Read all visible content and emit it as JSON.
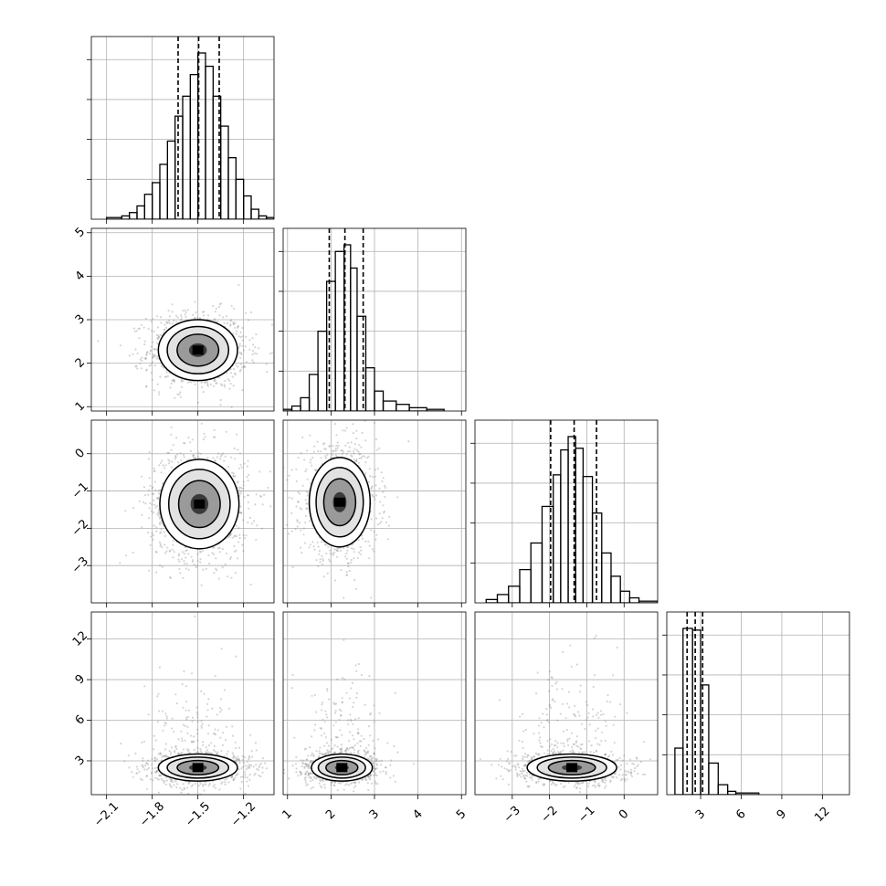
{
  "chart_data": {
    "type": "corner",
    "description": "Corner plot of 4 parameters: 1-D histograms on the diagonal with dashed 16/50/84 percentile lines; 2-D scatter + shaded density + contour panels below the diagonal.",
    "colors": {
      "line": "#000000",
      "grid": "#b0b0b0",
      "points": "#888888"
    },
    "grid": true,
    "parameters": [
      {
        "range": [
          -2.2,
          -1.0
        ],
        "ticks": [
          -2.1,
          -1.8,
          -1.5,
          -1.2
        ],
        "tick_labels": [
          "−2.1",
          "−1.8",
          "−1.5",
          "−1.2"
        ],
        "quantiles": [
          -1.63,
          -1.495,
          -1.36
        ],
        "mean": -1.495,
        "sd": 0.13,
        "hist": [
          {
            "lo": -2.2,
            "hi": -2.1,
            "count": 0
          },
          {
            "lo": -2.1,
            "hi": -2.0,
            "count": 1
          },
          {
            "lo": -2.0,
            "hi": -1.95,
            "count": 2
          },
          {
            "lo": -1.95,
            "hi": -1.9,
            "count": 4
          },
          {
            "lo": -1.9,
            "hi": -1.85,
            "count": 8
          },
          {
            "lo": -1.85,
            "hi": -1.8,
            "count": 15
          },
          {
            "lo": -1.8,
            "hi": -1.75,
            "count": 22
          },
          {
            "lo": -1.75,
            "hi": -1.7,
            "count": 33
          },
          {
            "lo": -1.7,
            "hi": -1.65,
            "count": 47
          },
          {
            "lo": -1.65,
            "hi": -1.6,
            "count": 62
          },
          {
            "lo": -1.6,
            "hi": -1.55,
            "count": 74
          },
          {
            "lo": -1.55,
            "hi": -1.5,
            "count": 87
          },
          {
            "lo": -1.5,
            "hi": -1.45,
            "count": 100
          },
          {
            "lo": -1.45,
            "hi": -1.4,
            "count": 92
          },
          {
            "lo": -1.4,
            "hi": -1.35,
            "count": 74
          },
          {
            "lo": -1.35,
            "hi": -1.3,
            "count": 56
          },
          {
            "lo": -1.3,
            "hi": -1.25,
            "count": 37
          },
          {
            "lo": -1.25,
            "hi": -1.2,
            "count": 24
          },
          {
            "lo": -1.2,
            "hi": -1.15,
            "count": 14
          },
          {
            "lo": -1.15,
            "hi": -1.1,
            "count": 6
          },
          {
            "lo": -1.1,
            "hi": -1.05,
            "count": 2
          },
          {
            "lo": -1.05,
            "hi": -1.0,
            "count": 1
          }
        ]
      },
      {
        "range": [
          0.9,
          5.1
        ],
        "ticks": [
          1,
          2,
          3,
          4,
          5
        ],
        "tick_labels": [
          "1",
          "2",
          "3",
          "4",
          "5"
        ],
        "quantiles": [
          1.96,
          2.32,
          2.74
        ],
        "mean": 2.32,
        "sd": 0.35,
        "hist": [
          {
            "lo": 0.9,
            "hi": 1.1,
            "count": 1
          },
          {
            "lo": 1.1,
            "hi": 1.3,
            "count": 3
          },
          {
            "lo": 1.3,
            "hi": 1.5,
            "count": 8
          },
          {
            "lo": 1.5,
            "hi": 1.7,
            "count": 22
          },
          {
            "lo": 1.7,
            "hi": 1.9,
            "count": 48
          },
          {
            "lo": 1.9,
            "hi": 2.1,
            "count": 78
          },
          {
            "lo": 2.1,
            "hi": 2.3,
            "count": 96
          },
          {
            "lo": 2.3,
            "hi": 2.45,
            "count": 100
          },
          {
            "lo": 2.45,
            "hi": 2.6,
            "count": 86
          },
          {
            "lo": 2.6,
            "hi": 2.8,
            "count": 57
          },
          {
            "lo": 2.8,
            "hi": 3.0,
            "count": 26
          },
          {
            "lo": 3.0,
            "hi": 3.2,
            "count": 12
          },
          {
            "lo": 3.2,
            "hi": 3.5,
            "count": 6
          },
          {
            "lo": 3.5,
            "hi": 3.8,
            "count": 4
          },
          {
            "lo": 3.8,
            "hi": 4.2,
            "count": 2
          },
          {
            "lo": 4.2,
            "hi": 4.6,
            "count": 1
          },
          {
            "lo": 4.6,
            "hi": 5.1,
            "count": 0
          }
        ]
      },
      {
        "range": [
          -4.0,
          0.9
        ],
        "ticks": [
          -3,
          -2,
          -1,
          0
        ],
        "tick_labels": [
          "−3",
          "−2",
          "−1",
          "0"
        ],
        "quantiles": [
          -1.97,
          -1.34,
          -0.74
        ],
        "mean": -1.34,
        "sd": 0.6,
        "hist": [
          {
            "lo": -4.0,
            "hi": -3.7,
            "count": 0
          },
          {
            "lo": -3.7,
            "hi": -3.4,
            "count": 2
          },
          {
            "lo": -3.4,
            "hi": -3.1,
            "count": 5
          },
          {
            "lo": -3.1,
            "hi": -2.8,
            "count": 10
          },
          {
            "lo": -2.8,
            "hi": -2.5,
            "count": 20
          },
          {
            "lo": -2.5,
            "hi": -2.2,
            "count": 36
          },
          {
            "lo": -2.2,
            "hi": -1.9,
            "count": 58
          },
          {
            "lo": -1.9,
            "hi": -1.7,
            "count": 77
          },
          {
            "lo": -1.7,
            "hi": -1.5,
            "count": 92
          },
          {
            "lo": -1.5,
            "hi": -1.3,
            "count": 100
          },
          {
            "lo": -1.3,
            "hi": -1.1,
            "count": 93
          },
          {
            "lo": -1.1,
            "hi": -0.85,
            "count": 76
          },
          {
            "lo": -0.85,
            "hi": -0.6,
            "count": 54
          },
          {
            "lo": -0.6,
            "hi": -0.35,
            "count": 30
          },
          {
            "lo": -0.35,
            "hi": -0.1,
            "count": 16
          },
          {
            "lo": -0.1,
            "hi": 0.15,
            "count": 7
          },
          {
            "lo": 0.15,
            "hi": 0.4,
            "count": 3
          },
          {
            "lo": 0.4,
            "hi": 0.9,
            "count": 1
          }
        ]
      },
      {
        "range": [
          0.5,
          14.0
        ],
        "ticks": [
          3,
          6,
          9,
          12
        ],
        "tick_labels": [
          "3",
          "6",
          "9",
          "12"
        ],
        "quantiles": [
          2.0,
          2.6,
          3.15
        ],
        "mean": 2.6,
        "sd": 0.5,
        "hist": [
          {
            "lo": 0.5,
            "hi": 1.1,
            "count": 0
          },
          {
            "lo": 1.1,
            "hi": 1.7,
            "count": 28
          },
          {
            "lo": 1.7,
            "hi": 2.4,
            "count": 100
          },
          {
            "lo": 2.4,
            "hi": 3.0,
            "count": 99
          },
          {
            "lo": 3.0,
            "hi": 3.6,
            "count": 66
          },
          {
            "lo": 3.6,
            "hi": 4.3,
            "count": 19
          },
          {
            "lo": 4.3,
            "hi": 5.0,
            "count": 6
          },
          {
            "lo": 5.0,
            "hi": 5.6,
            "count": 2
          },
          {
            "lo": 5.6,
            "hi": 7.3,
            "count": 1
          },
          {
            "lo": 7.3,
            "hi": 14.0,
            "count": 0
          }
        ]
      }
    ],
    "panels_2d": [
      {
        "x": 0,
        "y": 1,
        "x_center": -1.5,
        "y_center": 2.3
      },
      {
        "x": 0,
        "y": 2,
        "x_center": -1.49,
        "y_center": -1.35
      },
      {
        "x": 1,
        "y": 2,
        "x_center": 2.2,
        "y_center": -1.3
      },
      {
        "x": 0,
        "y": 3,
        "x_center": -1.5,
        "y_center": 2.5
      },
      {
        "x": 1,
        "y": 3,
        "x_center": 2.25,
        "y_center": 2.5
      },
      {
        "x": 2,
        "y": 3,
        "x_center": -1.4,
        "y_center": 2.5
      }
    ]
  }
}
